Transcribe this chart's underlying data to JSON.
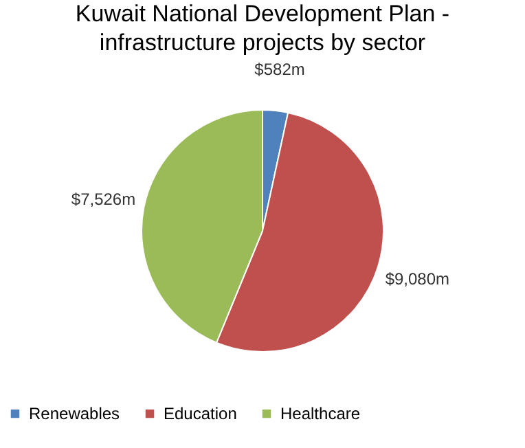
{
  "chart_data": {
    "type": "pie",
    "title": [
      "Kuwait National Development Plan -",
      "infrastructure projects by sector"
    ],
    "categories": [
      "Renewables",
      "Education",
      "Healthcare"
    ],
    "values": [
      582,
      9080,
      7526
    ],
    "value_labels": [
      "$582m",
      "$9,080m",
      "$7,526m"
    ],
    "colors": [
      "#4f81bd",
      "#c0504d",
      "#9bbb59"
    ],
    "legend": "bottom"
  }
}
